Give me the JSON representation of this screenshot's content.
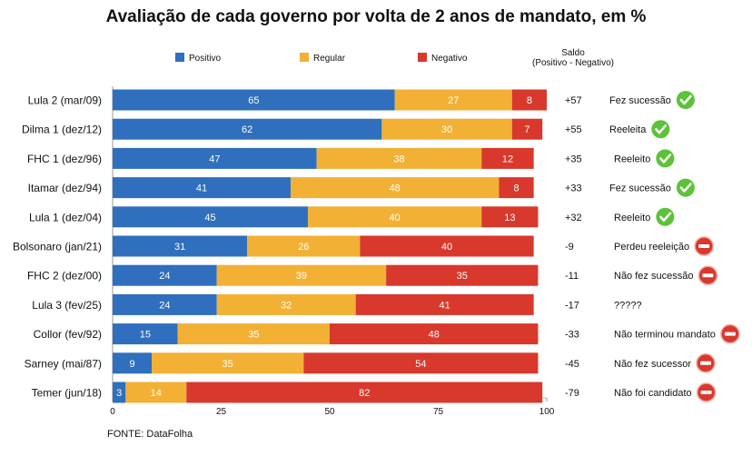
{
  "chart_data": {
    "type": "bar",
    "orientation": "horizontal",
    "stacked": true,
    "title": "Avaliação de cada governo por volta de 2 anos de mandato, em %",
    "categories": [
      "Lula 2 (mar/09)",
      "Dilma 1 (dez/12)",
      "FHC 1 (dez/96)",
      "Itamar (dez/94)",
      "Lula 1 (dez/04)",
      "Bolsonaro (jan/21)",
      "FHC 2 (dez/00)",
      "Lula 3 (fev/25)",
      "Collor (fev/92)",
      "Sarney (mai/87)",
      "Temer (jun/18)"
    ],
    "series": [
      {
        "name": "Positivo",
        "color": "#2f6fbd",
        "values": [
          65,
          62,
          47,
          41,
          45,
          31,
          24,
          24,
          15,
          9,
          3
        ]
      },
      {
        "name": "Regular",
        "color": "#f2b035",
        "values": [
          27,
          30,
          38,
          48,
          40,
          26,
          39,
          32,
          35,
          35,
          14
        ]
      },
      {
        "name": "Negativo",
        "color": "#d9382c",
        "values": [
          8,
          7,
          12,
          8,
          13,
          40,
          35,
          41,
          48,
          54,
          82
        ]
      }
    ],
    "saldo_header": [
      "Saldo",
      "(Positivo - Negativo)"
    ],
    "saldo": [
      "+57",
      "+55",
      "+35",
      "+33",
      "+32",
      "-9",
      "-11",
      "-17",
      "-33",
      "-45",
      "-79"
    ],
    "outcomes": [
      "Fez sucessão",
      "Reeleita",
      "Reeleito",
      "Fez sucessão",
      "Reeleito",
      "Perdeu reeleição",
      "Não fez sucessão",
      "?????",
      "Não terminou mandato",
      "Não fez sucessor",
      "Não foi candidato"
    ],
    "outcome_icons": [
      "check-icon",
      "check-icon",
      "check-icon",
      "check-icon",
      "check-icon",
      "no-entry-icon",
      "no-entry-icon",
      "",
      "no-entry-icon",
      "no-entry-icon",
      "no-entry-icon"
    ],
    "x_ticks": [
      "0",
      "25",
      "50",
      "75",
      "100"
    ],
    "xlim": [
      0,
      100
    ],
    "source": "FONTE: DataFolha",
    "colors": {
      "check": "#5cc23a",
      "no_entry": "#d9382c"
    }
  }
}
